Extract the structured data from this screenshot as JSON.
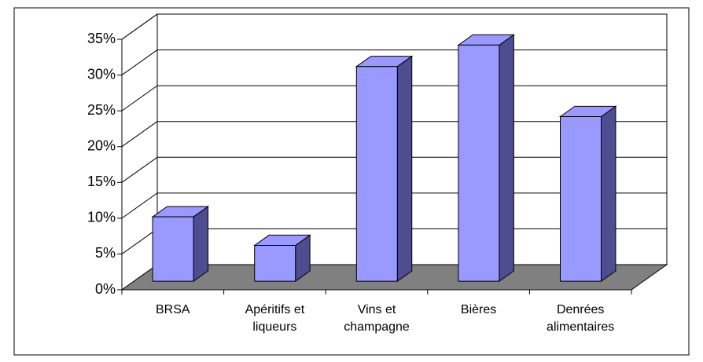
{
  "chart_data": {
    "type": "bar3d",
    "categories": [
      "BRSA",
      "Apéritifs et liqueurs",
      "Vins et champagne",
      "Bières",
      "Denrées alimentaires"
    ],
    "values": [
      9,
      5,
      30,
      33,
      23
    ],
    "color": "#9999ff",
    "side_color": "#4d4d8f",
    "floor_color": "#808080",
    "ylim": [
      0,
      35
    ],
    "yticks": [
      {
        "value": 0,
        "label": "0%"
      },
      {
        "value": 5,
        "label": "5%"
      },
      {
        "value": 10,
        "label": "10%"
      },
      {
        "value": 15,
        "label": "15%"
      },
      {
        "value": 20,
        "label": "20%"
      },
      {
        "value": 25,
        "label": "25%"
      },
      {
        "value": 30,
        "label": "30%"
      },
      {
        "value": 35,
        "label": "35%"
      }
    ],
    "grid": true
  }
}
